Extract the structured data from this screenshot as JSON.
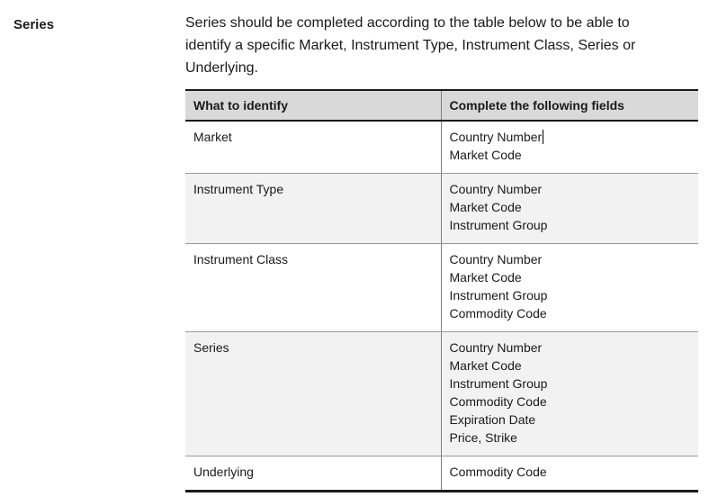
{
  "section": {
    "label": "Series",
    "intro_lines": [
      "Series should be completed according to the table below to be able to",
      "identify a specific Market, Instrument Type, Instrument Class, Series or",
      "Underlying."
    ]
  },
  "table": {
    "headers": [
      "What to identify",
      "Complete the following fields"
    ],
    "rows": [
      {
        "what": "Market",
        "fields": [
          "Country Number",
          "Market Code"
        ]
      },
      {
        "what": "Instrument Type",
        "fields": [
          "Country Number",
          "Market Code",
          "Instrument Group"
        ]
      },
      {
        "what": "Instrument Class",
        "fields": [
          "Country Number",
          "Market Code",
          "Instrument Group",
          "Commodity Code"
        ]
      },
      {
        "what": "Series",
        "fields": [
          "Country Number",
          "Market Code",
          "Instrument Group",
          "Commodity Code",
          "Expiration Date",
          "Price, Strike"
        ]
      },
      {
        "what": "Underlying",
        "fields": [
          "Commodity Code"
        ]
      }
    ],
    "caret_position": {
      "row_index": 0,
      "field_index": 0,
      "after_text": "Country Number"
    }
  },
  "colors": {
    "header_bg": "#d9d9d9",
    "shaded_row_bg": "#f2f2f2",
    "heavy_border": "#1a1a1a",
    "row_divider": "#999999",
    "column_divider": "#7f7f7f",
    "text": "#1a1a1a"
  }
}
